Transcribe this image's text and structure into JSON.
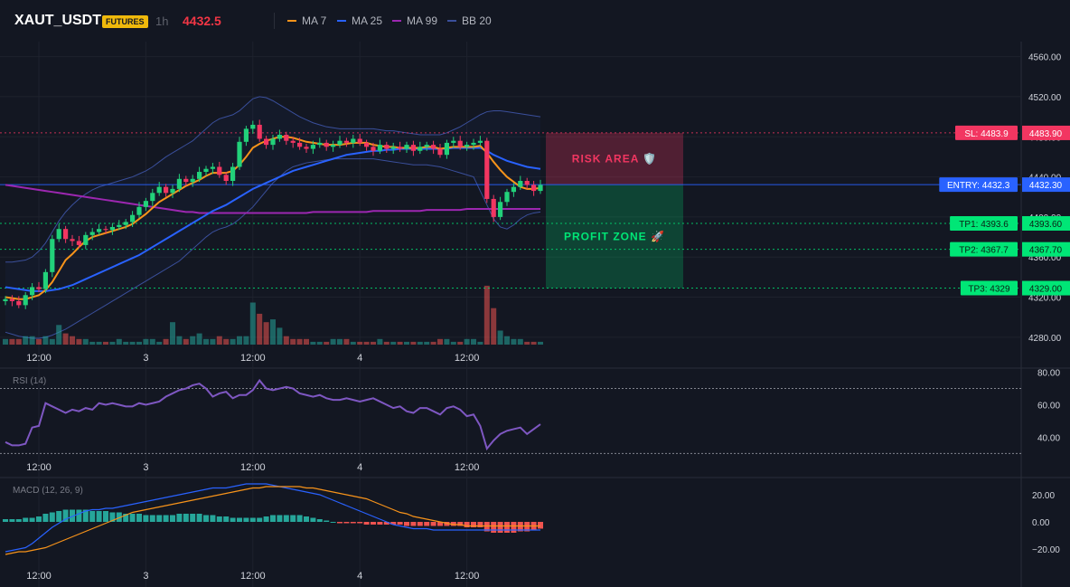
{
  "header": {
    "symbol": "XAUT_USDT",
    "market_badge": "FUTURES",
    "timeframe": "1h",
    "last_price": "4432.5",
    "legend": [
      {
        "label": "MA 7",
        "color": "#f7931a"
      },
      {
        "label": "MA 25",
        "color": "#2962ff"
      },
      {
        "label": "MA 99",
        "color": "#9c27b0"
      },
      {
        "label": "BB 20",
        "color": "#3a4f9b"
      }
    ]
  },
  "colors": {
    "up": "#26a69a",
    "down": "#ef5350",
    "candle_up": "#22d17a",
    "candle_down": "#f23661",
    "sl": "#f23661",
    "entry": "#2962ff",
    "tp": "#00e676"
  },
  "chart_data": [
    {
      "type": "candlestick",
      "name": "price",
      "ylim": [
        4260,
        4575
      ],
      "y_ticks": [
        4560,
        4520,
        4480,
        4440,
        4400,
        4360,
        4320,
        4280
      ],
      "y_tick_labels": [
        "4560.00",
        "4520.00",
        "4480.00",
        "4440.00",
        "4400.00",
        "4360.00",
        "4320.00",
        "4280.00"
      ],
      "time_labels": [
        "12:00",
        "3",
        "12:00",
        "4",
        "12:00"
      ],
      "time_label_bars": [
        5,
        21,
        37,
        53,
        69
      ],
      "closes": [
        4318,
        4316,
        4312,
        4322,
        4330,
        4328,
        4345,
        4378,
        4388,
        4378,
        4376,
        4372,
        4382,
        4385,
        4388,
        4387,
        4390,
        4392,
        4395,
        4402,
        4410,
        4416,
        4424,
        4430,
        4424,
        4428,
        4438,
        4435,
        4438,
        4445,
        4448,
        4450,
        4442,
        4436,
        4450,
        4475,
        4488,
        4492,
        4478,
        4472,
        4478,
        4482,
        4476,
        4474,
        4470,
        4468,
        4472,
        4474,
        4470,
        4472,
        4476,
        4474,
        4478,
        4474,
        4470,
        4466,
        4472,
        4468,
        4470,
        4468,
        4472,
        4466,
        4470,
        4472,
        4468,
        4462,
        4474,
        4476,
        4470,
        4472,
        4474,
        4476,
        4418,
        4400,
        4415,
        4425,
        4430,
        4436,
        4432,
        4426,
        4432
      ]
    },
    {
      "type": "line",
      "name": "MA 7",
      "values": [
        4320,
        4319,
        4318,
        4318,
        4320,
        4322,
        4327,
        4335,
        4346,
        4357,
        4363,
        4370,
        4376,
        4380,
        4382,
        4384,
        4386,
        4388,
        4390,
        4393,
        4398,
        4403,
        4409,
        4415,
        4419,
        4423,
        4427,
        4431,
        4434,
        4437,
        4441,
        4444,
        4444,
        4444,
        4446,
        4452,
        4460,
        4469,
        4473,
        4476,
        4478,
        4480,
        4480,
        4479,
        4477,
        4475,
        4474,
        4473,
        4472,
        4472,
        4472,
        4473,
        4474,
        4474,
        4474,
        4472,
        4471,
        4470,
        4470,
        4469,
        4469,
        4469,
        4469,
        4470,
        4470,
        4468,
        4469,
        4470,
        4470,
        4470,
        4470,
        4471,
        4464,
        4455,
        4447,
        4440,
        4435,
        4430,
        4428,
        4428,
        4429
      ]
    },
    {
      "type": "line",
      "name": "MA 25",
      "values": [
        4330,
        4329,
        4328,
        4327,
        4326,
        4326,
        4326,
        4327,
        4328,
        4330,
        4332,
        4335,
        4338,
        4341,
        4344,
        4347,
        4350,
        4353,
        4356,
        4359,
        4362,
        4366,
        4370,
        4374,
        4378,
        4382,
        4386,
        4390,
        4394,
        4398,
        4402,
        4406,
        4409,
        4412,
        4416,
        4420,
        4424,
        4428,
        4431,
        4434,
        4437,
        4440,
        4443,
        4446,
        4448,
        4450,
        4452,
        4454,
        4456,
        4458,
        4460,
        4462,
        4463,
        4464,
        4465,
        4466,
        4466,
        4467,
        4467,
        4468,
        4468,
        4468,
        4468,
        4468,
        4468,
        4468,
        4468,
        4469,
        4469,
        4469,
        4469,
        4469,
        4466,
        4462,
        4459,
        4456,
        4454,
        4452,
        4450,
        4449,
        4448
      ]
    },
    {
      "type": "line",
      "name": "MA 99",
      "values": [
        4432,
        4431,
        4430,
        4429,
        4428,
        4427,
        4426,
        4425,
        4424,
        4423,
        4422,
        4421,
        4420,
        4419,
        4418,
        4417,
        4416,
        4415,
        4414,
        4413,
        4412,
        4411,
        4410,
        4409,
        4408,
        4407,
        4406,
        4405,
        4405,
        4404,
        4404,
        4404,
        4404,
        4404,
        4404,
        4404,
        4404,
        4404,
        4404,
        4404,
        4404,
        4404,
        4404,
        4404,
        4404,
        4404,
        4405,
        4405,
        4405,
        4405,
        4405,
        4405,
        4405,
        4405,
        4405,
        4406,
        4406,
        4406,
        4406,
        4406,
        4406,
        4406,
        4406,
        4407,
        4407,
        4407,
        4407,
        4407,
        4407,
        4408,
        4408,
        4408,
        4408,
        4408,
        4408,
        4408,
        4408,
        4408,
        4408,
        4408,
        4408
      ]
    },
    {
      "type": "band",
      "name": "BB 20",
      "upper": [
        4355,
        4355,
        4356,
        4357,
        4360,
        4366,
        4374,
        4385,
        4396,
        4405,
        4412,
        4418,
        4423,
        4427,
        4430,
        4432,
        4434,
        4436,
        4438,
        4440,
        4443,
        4446,
        4450,
        4455,
        4460,
        4464,
        4468,
        4472,
        4476,
        4482,
        4488,
        4494,
        4498,
        4500,
        4502,
        4506,
        4512,
        4518,
        4520,
        4519,
        4516,
        4512,
        4508,
        4504,
        4500,
        4497,
        4494,
        4492,
        4490,
        4489,
        4488,
        4488,
        4488,
        4488,
        4488,
        4488,
        4487,
        4486,
        4486,
        4485,
        4484,
        4483,
        4482,
        4482,
        4482,
        4482,
        4484,
        4487,
        4490,
        4494,
        4498,
        4502,
        4505,
        4506,
        4506,
        4505,
        4504,
        4503,
        4502,
        4501,
        4500
      ],
      "lower": [
        4285,
        4283,
        4281,
        4280,
        4279,
        4279,
        4280,
        4282,
        4285,
        4288,
        4292,
        4296,
        4300,
        4304,
        4308,
        4312,
        4316,
        4320,
        4324,
        4328,
        4332,
        4336,
        4340,
        4344,
        4348,
        4352,
        4356,
        4362,
        4368,
        4374,
        4380,
        4385,
        4388,
        4390,
        4393,
        4398,
        4404,
        4410,
        4418,
        4426,
        4434,
        4440,
        4446,
        4450,
        4452,
        4454,
        4455,
        4456,
        4457,
        4458,
        4458,
        4458,
        4458,
        4458,
        4458,
        4458,
        4457,
        4456,
        4455,
        4454,
        4453,
        4452,
        4452,
        4452,
        4451,
        4450,
        4448,
        4446,
        4444,
        4442,
        4440,
        4426,
        4412,
        4398,
        4390,
        4388,
        4392,
        4398,
        4402,
        4404,
        4405
      ]
    },
    {
      "type": "bar",
      "name": "volume",
      "values": [
        2,
        2,
        2,
        3,
        3,
        2,
        3,
        2,
        7,
        4,
        3,
        2,
        2,
        1,
        1,
        1,
        1,
        2,
        1,
        1,
        1,
        2,
        2,
        1,
        2,
        8,
        3,
        2,
        3,
        4,
        2,
        2,
        3,
        2,
        2,
        3,
        3,
        15,
        11,
        8,
        9,
        6,
        3,
        2,
        2,
        2,
        1,
        1,
        1,
        2,
        2,
        2,
        1,
        1,
        1,
        1,
        2,
        1,
        1,
        1,
        1,
        1,
        1,
        1,
        1,
        2,
        2,
        1,
        1,
        2,
        2,
        1,
        21,
        13,
        5,
        3,
        2,
        2,
        1,
        1,
        1
      ]
    },
    {
      "type": "line",
      "name": "RSI (14)",
      "ylim": [
        28,
        82
      ],
      "y_ticks": [
        80,
        60,
        40
      ],
      "y_tick_labels": [
        "80.00",
        "60.00",
        "40.00"
      ],
      "bands": [
        70,
        30
      ],
      "time_labels": [
        "12:00",
        "3",
        "12:00",
        "4",
        "12:00"
      ],
      "values": [
        37,
        35,
        35,
        36,
        46,
        47,
        61,
        59,
        57,
        55,
        57,
        56,
        58,
        57,
        61,
        60,
        61,
        60,
        59,
        59,
        61,
        60,
        61,
        62,
        65,
        67,
        69,
        70,
        72,
        73,
        70,
        65,
        67,
        68,
        64,
        66,
        66,
        69,
        75,
        70,
        69,
        70,
        71,
        70,
        67,
        66,
        65,
        66,
        64,
        63,
        63,
        64,
        63,
        62,
        63,
        64,
        62,
        60,
        58,
        59,
        56,
        55,
        58,
        58,
        56,
        54,
        58,
        59,
        57,
        53,
        54,
        47,
        33,
        38,
        42,
        44,
        45,
        46,
        42,
        45,
        48
      ]
    },
    {
      "type": "bar",
      "name": "MACD (12, 26, 9)",
      "ylim": [
        -32,
        32
      ],
      "y_ticks": [
        20,
        0,
        -20
      ],
      "y_tick_labels": [
        "20.00",
        "0.00",
        "−20.00"
      ],
      "time_labels": [
        "12:00",
        "3",
        "12:00",
        "4",
        "12:00"
      ],
      "histogram": [
        2,
        2,
        2,
        3,
        3,
        4,
        6,
        7,
        8,
        9,
        9,
        9,
        9,
        8,
        8,
        8,
        7,
        7,
        6,
        6,
        6,
        5,
        5,
        5,
        5,
        5,
        6,
        6,
        6,
        6,
        5,
        5,
        4,
        4,
        3,
        3,
        3,
        3,
        3,
        4,
        5,
        5,
        5,
        5,
        5,
        4,
        3,
        2,
        1,
        0,
        -1,
        -1,
        -1,
        -1,
        -2,
        -2,
        -2,
        -2,
        -2,
        -2,
        -3,
        -3,
        -3,
        -3,
        -3,
        -3,
        -3,
        -3,
        -3,
        -4,
        -4,
        -4,
        -7,
        -8,
        -8,
        -8,
        -8,
        -7,
        -7,
        -6,
        -5
      ],
      "macd": [
        -22,
        -21,
        -20,
        -19,
        -16,
        -12,
        -8,
        -4,
        -1,
        2,
        4,
        6,
        8,
        9,
        9,
        10,
        10,
        11,
        12,
        13,
        14,
        15,
        16,
        17,
        18,
        19,
        20,
        21,
        22,
        23,
        24,
        25,
        25,
        25,
        26,
        27,
        28,
        28,
        28,
        28,
        27,
        26,
        25,
        24,
        23,
        22,
        21,
        20,
        18,
        16,
        14,
        12,
        10,
        8,
        6,
        4,
        2,
        0,
        -2,
        -3,
        -4,
        -5,
        -5,
        -5,
        -6,
        -6,
        -6,
        -6,
        -6,
        -6,
        -6,
        -6,
        -6,
        -6,
        -6,
        -6,
        -6,
        -6,
        -6,
        -6,
        -6
      ],
      "signal": [
        -24,
        -23,
        -22,
        -22,
        -21,
        -20,
        -19,
        -17,
        -15,
        -13,
        -11,
        -9,
        -7,
        -5,
        -3,
        -1,
        1,
        3,
        5,
        7,
        8,
        9,
        10,
        11,
        12,
        13,
        14,
        15,
        16,
        17,
        18,
        19,
        20,
        21,
        22,
        23,
        24,
        25,
        25,
        26,
        26,
        26,
        26,
        26,
        26,
        25,
        25,
        24,
        23,
        22,
        21,
        20,
        19,
        18,
        17,
        15,
        13,
        11,
        9,
        7,
        6,
        4,
        3,
        2,
        1,
        0,
        -1,
        -2,
        -2,
        -3,
        -3,
        -3,
        -3,
        -3,
        -3,
        -3,
        -3,
        -3,
        -3,
        -3,
        -3
      ]
    }
  ],
  "levels": [
    {
      "id": "sl",
      "price": 4483.9,
      "tag": "SL: 4483.9",
      "axis": "4483.90",
      "color": "#f23661",
      "text_color": "#ffffff"
    },
    {
      "id": "entry",
      "price": 4432.3,
      "tag": "ENTRY: 4432.3",
      "axis": "4432.30",
      "color": "#2962ff",
      "text_color": "#ffffff"
    },
    {
      "id": "tp1",
      "price": 4393.6,
      "tag": "TP1: 4393.6",
      "axis": "4393.60",
      "color": "#00e676",
      "text_color": "#0b1f14"
    },
    {
      "id": "tp2",
      "price": 4367.7,
      "tag": "TP2: 4367.7",
      "axis": "4367.70",
      "color": "#00e676",
      "text_color": "#0b1f14"
    },
    {
      "id": "tp3",
      "price": 4329,
      "tag": "TP3: 4329",
      "axis": "4329.00",
      "color": "#00e676",
      "text_color": "#0b1f14"
    }
  ],
  "zones": [
    {
      "id": "risk",
      "label": "RISK AREA 🛡️",
      "from": 4483.9,
      "to": 4432.3,
      "color": "#f23661"
    },
    {
      "id": "profit",
      "label": "PROFIT ZONE 🚀",
      "from": 4432.3,
      "to": 4329,
      "color": "#00e676"
    }
  ]
}
